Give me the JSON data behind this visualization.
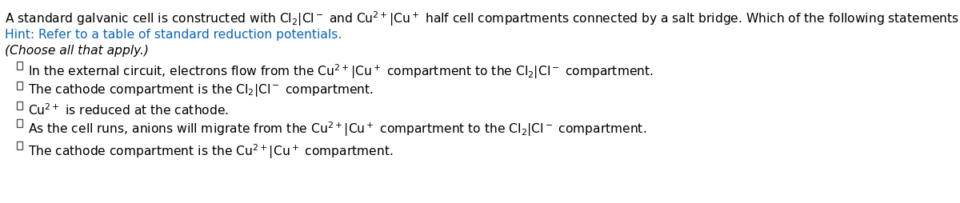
{
  "bg_color": "#ffffff",
  "title_color": "#000000",
  "hint_color": "#0563C1",
  "choose_color": "#000000",
  "option_color": "#000000",
  "checkbox_color": "#555555",
  "figsize": [
    12.0,
    2.55
  ],
  "dpi": 100
}
